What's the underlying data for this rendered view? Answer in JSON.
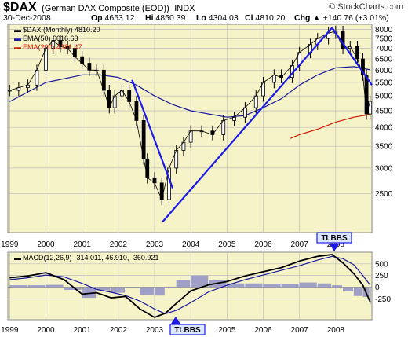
{
  "header": {
    "symbol": "$DAX",
    "description": "(German DAX Composite (EOD))",
    "exchange": "INDX",
    "date": "30-Dec-2008",
    "open_label": "Op",
    "open": "4653.12",
    "high_label": "Hi",
    "high": "4850.39",
    "low_label": "Lo",
    "low": "4304.03",
    "close_label": "Cl",
    "close": "4810.20",
    "change_label": "Chg",
    "change": "+140.76 (+3.01%)",
    "change_arrow": "▲",
    "copyright": "© StockCharts.com"
  },
  "colors": {
    "panel_bg": "#f7f3c8",
    "up": "#000000",
    "ema50": "#1a1a9c",
    "ema200": "#cc1a00",
    "trendline": "#1a1ae6",
    "macd_line": "#000000",
    "signal_line": "#1a1a9c",
    "histogram": "#8f8fc8",
    "callout_fill": "#dbe6ff",
    "callout_border": "#1a1ae6"
  },
  "price_legend": {
    "series": "$DAX (Monthly) 4810.20",
    "ema50": "EMA(50) 6016.63",
    "ema200": "EMA(200) 4381.47"
  },
  "macd_legend": {
    "label": "MACD(12,26,9)",
    "values": "-314.011, 46.910, -360.921"
  },
  "callouts": {
    "top": "TLBBS",
    "bottom": "TLBBS"
  },
  "chart_data": [
    {
      "type": "line",
      "title": "$DAX (Monthly)",
      "yscale": "log",
      "ylim": [
        1900,
        8300
      ],
      "y_ticks": [
        2500,
        3000,
        3500,
        4000,
        4500,
        5000,
        5500,
        6000,
        6500,
        7000,
        7500,
        8000
      ],
      "x_ticks": [
        "1999",
        "2000",
        "2001",
        "2002",
        "2003",
        "2004",
        "2005",
        "2006",
        "2007",
        "2008"
      ],
      "xlim": [
        1998.95,
        2009.0
      ],
      "grid": true,
      "series": [
        {
          "name": "$DAX (Monthly)",
          "x": [
            1999.0,
            1999.25,
            1999.5,
            1999.75,
            2000.0,
            2000.2,
            2000.4,
            2000.6,
            2000.8,
            2001.0,
            2001.2,
            2001.4,
            2001.6,
            2001.75,
            2001.9,
            2002.1,
            2002.3,
            2002.5,
            2002.7,
            2002.8,
            2003.0,
            2003.2,
            2003.4,
            2003.6,
            2003.8,
            2004.0,
            2004.3,
            2004.6,
            2004.9,
            2005.2,
            2005.5,
            2005.8,
            2006.0,
            2006.3,
            2006.5,
            2006.8,
            2007.0,
            2007.3,
            2007.5,
            2007.8,
            2008.0,
            2008.2,
            2008.4,
            2008.6,
            2008.75,
            2008.85,
            2008.95
          ],
          "values": [
            5200,
            5300,
            5400,
            6000,
            7000,
            7400,
            7100,
            7000,
            6600,
            6300,
            6000,
            6000,
            5200,
            4600,
            5000,
            5200,
            4800,
            4200,
            3200,
            2800,
            2700,
            2400,
            3000,
            3400,
            3600,
            3900,
            3900,
            3800,
            4200,
            4300,
            4600,
            5000,
            5500,
            5800,
            5700,
            6200,
            6800,
            7200,
            7500,
            7800,
            7900,
            7000,
            7100,
            6500,
            5800,
            4400,
            4810
          ]
        },
        {
          "name": "EMA(50)",
          "x": [
            1999.0,
            2000.0,
            2001.0,
            2001.5,
            2002.0,
            2002.5,
            2003.0,
            2003.5,
            2004.0,
            2004.5,
            2005.0,
            2005.5,
            2006.0,
            2006.5,
            2007.0,
            2007.5,
            2008.0,
            2008.5,
            2008.95
          ],
          "values": [
            4800,
            5500,
            5800,
            5800,
            5700,
            5400,
            5000,
            4700,
            4500,
            4400,
            4300,
            4350,
            4600,
            4900,
            5400,
            5800,
            6100,
            6150,
            6016.63
          ]
        },
        {
          "name": "EMA(200)",
          "x": [
            2006.75,
            2007.0,
            2007.5,
            2008.0,
            2008.5,
            2008.95
          ],
          "values": [
            3700,
            3800,
            3950,
            4150,
            4300,
            4381.47
          ]
        }
      ]
    },
    {
      "type": "line",
      "title": "MACD(12,26,9)",
      "ylim": [
        -700,
        750
      ],
      "y_ticks": [
        -250,
        0,
        250,
        500
      ],
      "x_ticks": [
        "1999",
        "2000",
        "2001",
        "2002",
        "2003",
        "2004",
        "2005",
        "2006",
        "2007",
        "2008"
      ],
      "series": [
        {
          "name": "MACD",
          "x": [
            1999.0,
            1999.5,
            2000.0,
            2000.5,
            2001.0,
            2001.4,
            2001.8,
            2002.2,
            2002.6,
            2003.0,
            2003.3,
            2003.6,
            2004.0,
            2004.5,
            2005.0,
            2005.5,
            2006.0,
            2006.5,
            2007.0,
            2007.5,
            2007.9,
            2008.2,
            2008.5,
            2008.75,
            2008.95
          ],
          "values": [
            200,
            240,
            310,
            160,
            -150,
            -120,
            -230,
            -200,
            -470,
            -650,
            -560,
            -350,
            -80,
            50,
            120,
            240,
            330,
            420,
            560,
            660,
            700,
            520,
            290,
            40,
            -314.011
          ]
        },
        {
          "name": "Signal",
          "x": [
            1999.0,
            1999.5,
            2000.0,
            2000.5,
            2001.0,
            2001.4,
            2001.8,
            2002.2,
            2002.6,
            2003.0,
            2003.3,
            2003.6,
            2004.0,
            2004.5,
            2005.0,
            2005.5,
            2006.0,
            2006.5,
            2007.0,
            2007.5,
            2007.9,
            2008.2,
            2008.5,
            2008.75,
            2008.95
          ],
          "values": [
            160,
            200,
            260,
            220,
            80,
            -50,
            -110,
            -180,
            -300,
            -470,
            -570,
            -500,
            -330,
            -100,
            40,
            160,
            260,
            360,
            460,
            580,
            660,
            610,
            480,
            250,
            46.91
          ]
        },
        {
          "name": "Histogram",
          "x": [
            1999.0,
            1999.5,
            2000.0,
            2000.5,
            2001.0,
            2001.4,
            2001.8,
            2002.2,
            2002.6,
            2003.0,
            2003.3,
            2003.6,
            2004.0,
            2004.5,
            2005.0,
            2005.5,
            2006.0,
            2006.5,
            2007.0,
            2007.5,
            2007.9,
            2008.2,
            2008.5,
            2008.75,
            2008.95
          ],
          "values": [
            40,
            40,
            50,
            -60,
            -230,
            -70,
            -120,
            -20,
            -170,
            -180,
            10,
            150,
            250,
            150,
            80,
            80,
            70,
            60,
            100,
            80,
            40,
            -90,
            -190,
            -210,
            -360.921
          ]
        }
      ]
    }
  ]
}
